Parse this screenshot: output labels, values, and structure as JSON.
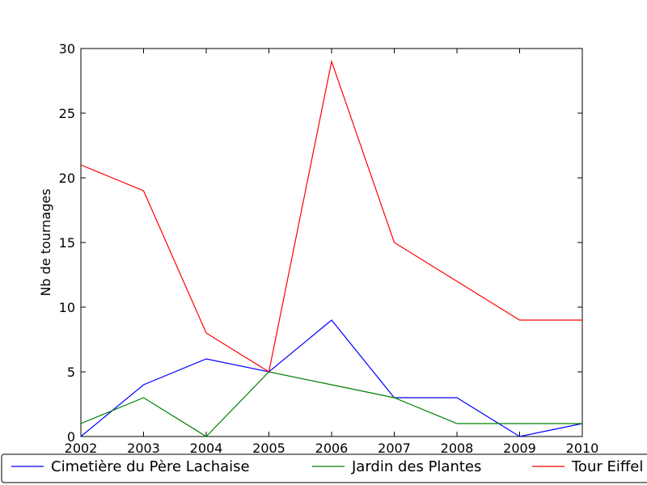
{
  "chart_data": {
    "type": "line",
    "title": "",
    "xlabel": "",
    "ylabel": "Nb de tournages",
    "x": [
      2002,
      2003,
      2004,
      2005,
      2006,
      2007,
      2008,
      2009,
      2010
    ],
    "xlim": [
      2002,
      2010
    ],
    "ylim": [
      0,
      30
    ],
    "xticks": [
      "2002",
      "2003",
      "2004",
      "2005",
      "2006",
      "2007",
      "2008",
      "2009",
      "2010"
    ],
    "yticks": [
      "0",
      "5",
      "10",
      "15",
      "20",
      "25",
      "30"
    ],
    "grid": false,
    "legend_position": "bottom, below plot",
    "series": [
      {
        "name": "Cimetière du Père Lachaise",
        "color": "#0000ff",
        "values": [
          0,
          4,
          6,
          5,
          9,
          3,
          3,
          0,
          1
        ]
      },
      {
        "name": "Jardin des Plantes",
        "color": "#008000",
        "values": [
          1,
          3,
          0,
          5,
          4,
          3,
          1,
          1,
          1
        ]
      },
      {
        "name": "Tour Eiffel",
        "color": "#ff0000",
        "values": [
          21,
          19,
          8,
          5,
          29,
          15,
          12,
          9,
          9
        ]
      }
    ]
  }
}
